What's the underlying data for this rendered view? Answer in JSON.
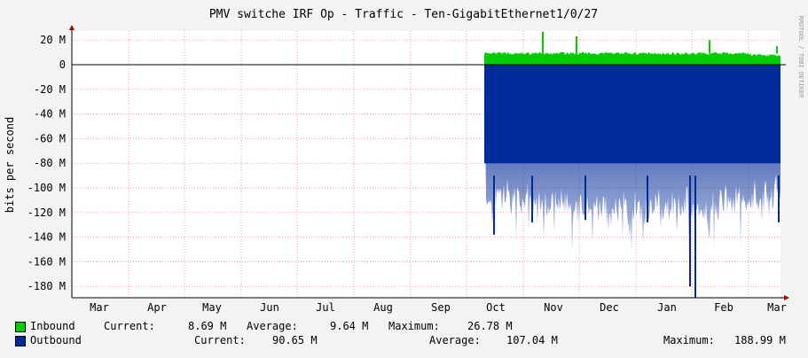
{
  "chart_data": {
    "type": "area",
    "title": "PMV switche IRF Op - Traffic - Ten-GigabitEthernet1/0/27",
    "ylabel": "bits per second",
    "xlabel": "",
    "watermark": "RRDTOOL / TOBI OETIKER",
    "categories": [
      "Mar",
      "Apr",
      "May",
      "Jun",
      "Jul",
      "Aug",
      "Sep",
      "Oct",
      "Nov",
      "Dec",
      "Jan",
      "Feb",
      "Mar"
    ],
    "ylim": [
      -190,
      25
    ],
    "y_unit": "M",
    "y_ticks": [
      20,
      0,
      -20,
      -40,
      -60,
      -80,
      -100,
      -120,
      -140,
      -160,
      -180
    ],
    "y_tick_labels": [
      "20 M",
      "0",
      "-20 M",
      "-40 M",
      "-60 M",
      "-80 M",
      "-100 M",
      "-120 M",
      "-140 M",
      "-160 M",
      "-180 M"
    ],
    "grid": true,
    "series": [
      {
        "name": "Inbound",
        "color": "#00cc00",
        "x": [
          "late Sep",
          "Oct",
          "Nov",
          "Dec",
          "Jan",
          "Feb",
          "Mar"
        ],
        "values": [
          9,
          9,
          9,
          8,
          8,
          7,
          9
        ],
        "peaks": [
          {
            "x": "Nov",
            "value": 26.78
          },
          {
            "x": "Nov",
            "value": 23
          }
        ],
        "current": "8.69 M",
        "average": "9.64 M",
        "maximum": "26.78 M"
      },
      {
        "name": "Outbound",
        "color": "#002a97",
        "x": [
          "late Sep",
          "Oct",
          "Nov",
          "Dec",
          "Jan",
          "Feb",
          "Mar"
        ],
        "values": [
          -95,
          -100,
          -105,
          -108,
          -110,
          -105,
          -100
        ],
        "peaks": [
          {
            "x": "Jan",
            "value": -188.99
          },
          {
            "x": "Jan",
            "value": -180
          },
          {
            "x": "Oct",
            "value": -138
          }
        ],
        "current": "90.65 M",
        "average": "107.04 M",
        "maximum": "188.99 M"
      }
    ]
  },
  "legend": {
    "inbound": {
      "label": "Inbound",
      "current_label": "Current:",
      "current": "8.69 M",
      "average_label": "Average:",
      "average": "9.64 M",
      "maximum_label": "Maximum:",
      "maximum": "26.78 M"
    },
    "outbound": {
      "label": "Outbound",
      "current_label": "Current:",
      "current": "90.65 M",
      "average_label": "Average:",
      "average": "107.04 M",
      "maximum_label": "Maximum:",
      "maximum": "188.99 M"
    }
  }
}
